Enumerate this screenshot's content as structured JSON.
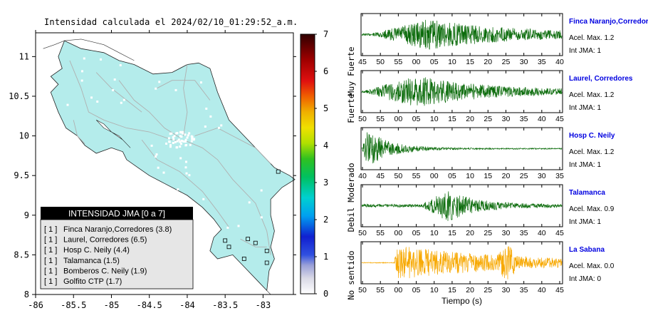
{
  "title": "Intensidad calculada el 2024/02/10_01:29:52_a.m.",
  "map": {
    "x_ticks": [
      "-86",
      "-85.5",
      "-85",
      "-84.5",
      "-84",
      "-83.5",
      "-83"
    ],
    "y_ticks": [
      "11",
      "10.5",
      "10",
      "9.5",
      "9",
      "8.5",
      "8"
    ],
    "xlim": [
      -86,
      -82.6
    ],
    "ylim": [
      8,
      11.3
    ],
    "land_color": "#b4eceb",
    "station_marker_color": "#ffffff"
  },
  "legend": {
    "title": "INTENSIDAD JMA [0 a 7]",
    "items": [
      {
        "jma": "[ 1 ]",
        "label": "Finca Naranjo,Corredores (3.8)"
      },
      {
        "jma": "[ 1 ]",
        "label": "Laurel, Corredores (6.5)"
      },
      {
        "jma": "[ 1 ]",
        "label": "Hosp C. Neily (4.4)"
      },
      {
        "jma": "[ 1 ]",
        "label": "Talamanca (1.5)"
      },
      {
        "jma": "[ 1 ]",
        "label": "Bomberos C. Neily (1.9)"
      },
      {
        "jma": "[ 1 ]",
        "label": "Golfito CTP (1.7)"
      }
    ]
  },
  "colorbar": {
    "ticks": [
      "0",
      "1",
      "2",
      "3",
      "4",
      "5",
      "6",
      "7"
    ],
    "category_labels": [
      "No sentido",
      "Debil",
      "Moderado",
      "Fuerte",
      "Muy Fuerte"
    ]
  },
  "chart_data": [
    {
      "type": "map",
      "title": "Intensidad calculada el 2024/02/10_01:29:52_a.m.",
      "xlim": [
        -86,
        -82.6
      ],
      "ylim": [
        8,
        11.3
      ],
      "stations_highlighted": [
        {
          "lon": -82.8,
          "lat": 9.55
        },
        {
          "lon": -83.45,
          "lat": 8.6
        },
        {
          "lon": -83.2,
          "lat": 8.7
        },
        {
          "lon": -83.25,
          "lat": 8.45
        },
        {
          "lon": -82.95,
          "lat": 8.55
        },
        {
          "lon": -82.95,
          "lat": 8.4
        },
        {
          "lon": -83.1,
          "lat": 8.65
        },
        {
          "lon": -83.5,
          "lat": 8.68
        }
      ]
    },
    {
      "type": "line",
      "title": "Finca Naranjo,Corredor",
      "x_ticks": [
        "45",
        "50",
        "55",
        "00",
        "05",
        "10",
        "15",
        "20",
        "25",
        "30",
        "35",
        "40"
      ],
      "acel_max": "Acel. Max. 1.2",
      "int_jma": "Int JMA: 1",
      "color": "#0a6b0a",
      "envelope": {
        "onset": 0.05,
        "peak": 0.33,
        "amplitude": 0.75,
        "decay": 0.45,
        "noise": 0.06
      }
    },
    {
      "type": "line",
      "title": "Laurel, Corredores",
      "x_ticks": [
        "50",
        "55",
        "00",
        "05",
        "10",
        "15",
        "20",
        "25",
        "30",
        "35",
        "40",
        "45"
      ],
      "acel_max": "Acel. Max. 1.2",
      "int_jma": "Int JMA: 1",
      "color": "#0a6b0a",
      "envelope": {
        "onset": 0.02,
        "peak": 0.27,
        "amplitude": 0.8,
        "decay": 0.35,
        "noise": 0.07
      }
    },
    {
      "type": "line",
      "title": "Hosp C. Neily",
      "x_ticks": [
        "40",
        "45",
        "50",
        "55",
        "00",
        "05",
        "10",
        "15",
        "20",
        "25",
        "30",
        "35"
      ],
      "acel_max": "Acel. Max. 1.2",
      "int_jma": "Int JMA: 1",
      "color": "#0a6b0a",
      "envelope": {
        "onset": 0.0,
        "peak": 0.03,
        "amplitude": 0.95,
        "decay": 0.12,
        "noise": 0.03
      }
    },
    {
      "type": "line",
      "title": "Talamanca",
      "x_ticks": [
        "50",
        "55",
        "00",
        "05",
        "10",
        "15",
        "20",
        "25",
        "30",
        "35",
        "40",
        "45"
      ],
      "acel_max": "Acel. Max. 0.9",
      "int_jma": "Int JMA: 1",
      "color": "#0a6b0a",
      "envelope": {
        "onset": 0.3,
        "peak": 0.43,
        "amplitude": 0.8,
        "decay": 0.14,
        "noise": 0.08
      }
    },
    {
      "type": "line",
      "title": "La Sabana",
      "x_ticks": [
        "50",
        "55",
        "00",
        "05",
        "10",
        "15",
        "20",
        "25",
        "30",
        "35",
        "40",
        "45"
      ],
      "acel_max": "Acel. Max. 0.0",
      "int_jma": "Int JMA: 0",
      "color": "#f7a800",
      "envelope": {
        "onset": 0.16,
        "peak": 0.18,
        "amplitude": 0.9,
        "decay": 0.6,
        "noise": 0.02,
        "burst2": 0.73
      },
      "xlabel": "Tiempo (s)"
    }
  ]
}
